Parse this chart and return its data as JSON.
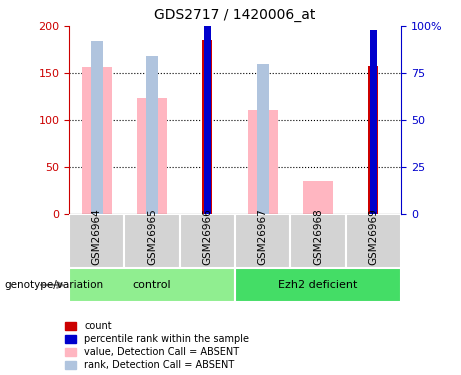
{
  "title": "GDS2717 / 1420006_at",
  "samples": [
    "GSM26964",
    "GSM26965",
    "GSM26966",
    "GSM26967",
    "GSM26968",
    "GSM26969"
  ],
  "groups": [
    {
      "label": "control",
      "color": "#90EE90"
    },
    {
      "label": "Ezh2 deficient",
      "color": "#44DD66"
    }
  ],
  "value_absent": [
    157,
    124,
    null,
    111,
    35,
    null
  ],
  "rank_absent": [
    92,
    84,
    null,
    80,
    null,
    null
  ],
  "count_values": [
    null,
    null,
    185,
    null,
    null,
    158
  ],
  "rank_present": [
    null,
    null,
    105,
    null,
    null,
    98
  ],
  "ylim_left": [
    0,
    200
  ],
  "ylim_right": [
    0,
    100
  ],
  "yticks_left": [
    0,
    50,
    100,
    150,
    200
  ],
  "yticks_right": [
    0,
    25,
    50,
    75,
    100
  ],
  "ytick_labels_left": [
    "0",
    "50",
    "100",
    "150",
    "200"
  ],
  "ytick_labels_right": [
    "0",
    "25",
    "50",
    "75",
    "100%"
  ],
  "colors": {
    "count": "#CC0000",
    "rank_present": "#0000CC",
    "value_absent": "#FFB6C1",
    "rank_absent": "#B0C4DE",
    "left_axis": "#CC0000",
    "right_axis": "#0000CC"
  },
  "legend_items": [
    {
      "color": "#CC0000",
      "label": "count"
    },
    {
      "color": "#0000CC",
      "label": "percentile rank within the sample"
    },
    {
      "color": "#FFB6C1",
      "label": "value, Detection Call = ABSENT"
    },
    {
      "color": "#B0C4DE",
      "label": "rank, Detection Call = ABSENT"
    }
  ],
  "genotype_label": "genotype/variation"
}
